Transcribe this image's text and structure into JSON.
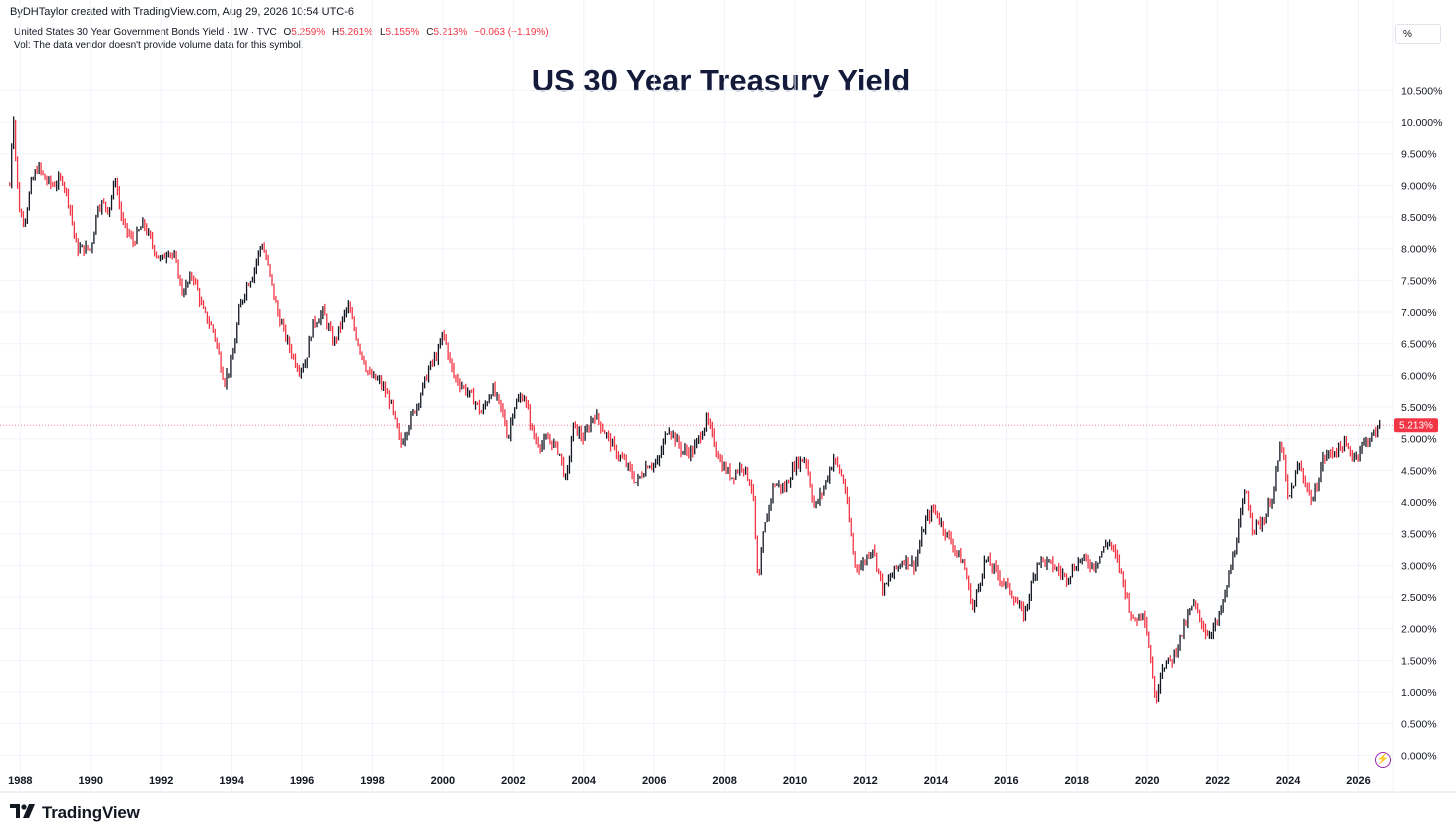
{
  "header": {
    "credit": "ByDHTaylor created with TradingView.com, Aug 29, 2026 10:54 UTC-6",
    "symbol_line": "United States 30 Year Government Bonds Yield · 1W · TVC",
    "open_label": "O",
    "open_value": "5.259%",
    "high_label": "H",
    "high_value": "5.261%",
    "low_label": "L",
    "low_value": "5.155%",
    "close_label": "C",
    "close_value": "5.213%",
    "change": "−0.063 (−1.19%)",
    "volume_note": "Vol: The data vendor doesn't provide volume data for this symbol.",
    "unit_button": "%"
  },
  "footer": {
    "brand": "TradingView"
  },
  "icons": {
    "logo": "tradingview-logo-icon",
    "lightning": "lightning-icon"
  },
  "colors": {
    "up": "#131722",
    "down": "#f23645",
    "price_tag": "#f23645",
    "title": "#131a3a"
  },
  "chart_data": {
    "type": "line",
    "title": "US 30 Year Treasury Yield",
    "xlabel": "",
    "ylabel": "",
    "x_ticks": [
      "1988",
      "1990",
      "1992",
      "1994",
      "1996",
      "1998",
      "2000",
      "2002",
      "2004",
      "2006",
      "2008",
      "2010",
      "2012",
      "2014",
      "2016",
      "2018",
      "2020",
      "2022",
      "2024",
      "2026"
    ],
    "y_ticks": [
      "0.000%",
      "0.500%",
      "1.000%",
      "1.500%",
      "2.000%",
      "2.500%",
      "3.000%",
      "3.500%",
      "4.000%",
      "4.500%",
      "5.000%",
      "5.500%",
      "6.000%",
      "6.500%",
      "7.000%",
      "7.500%",
      "8.000%",
      "8.500%",
      "9.000%",
      "9.500%",
      "10.000%",
      "10.500%"
    ],
    "xlim": [
      1987.65,
      2026.95
    ],
    "ylim": [
      -0.2,
      10.98
    ],
    "grid": true,
    "last_price_label": "5.213%",
    "last_price": 5.213,
    "series": [
      {
        "points": [
          [
            1987.7,
            9.0
          ],
          [
            1987.8,
            10.2
          ],
          [
            1987.9,
            9.1
          ],
          [
            1988.0,
            8.5
          ],
          [
            1988.15,
            8.5
          ],
          [
            1988.3,
            9.0
          ],
          [
            1988.5,
            9.3
          ],
          [
            1988.7,
            9.1
          ],
          [
            1988.9,
            9.0
          ],
          [
            1989.2,
            9.1
          ],
          [
            1989.4,
            8.7
          ],
          [
            1989.6,
            8.0
          ],
          [
            1989.8,
            8.0
          ],
          [
            1990.0,
            8.0
          ],
          [
            1990.2,
            8.7
          ],
          [
            1990.4,
            8.7
          ],
          [
            1990.5,
            8.6
          ],
          [
            1990.7,
            9.1
          ],
          [
            1990.9,
            8.4
          ],
          [
            1991.2,
            8.1
          ],
          [
            1991.5,
            8.4
          ],
          [
            1991.8,
            8.0
          ],
          [
            1992.0,
            7.8
          ],
          [
            1992.2,
            8.0
          ],
          [
            1992.4,
            7.8
          ],
          [
            1992.6,
            7.3
          ],
          [
            1992.9,
            7.6
          ],
          [
            1993.2,
            7.0
          ],
          [
            1993.5,
            6.7
          ],
          [
            1993.8,
            5.9
          ],
          [
            1994.0,
            6.2
          ],
          [
            1994.2,
            7.0
          ],
          [
            1994.4,
            7.4
          ],
          [
            1994.6,
            7.6
          ],
          [
            1994.85,
            8.1
          ],
          [
            1995.0,
            7.8
          ],
          [
            1995.3,
            7.0
          ],
          [
            1995.6,
            6.5
          ],
          [
            1995.9,
            6.1
          ],
          [
            1996.1,
            6.2
          ],
          [
            1996.3,
            6.8
          ],
          [
            1996.6,
            7.0
          ],
          [
            1996.9,
            6.5
          ],
          [
            1997.1,
            6.8
          ],
          [
            1997.3,
            7.1
          ],
          [
            1997.6,
            6.5
          ],
          [
            1997.9,
            6.0
          ],
          [
            1998.2,
            5.9
          ],
          [
            1998.5,
            5.6
          ],
          [
            1998.8,
            4.9
          ],
          [
            1999.0,
            5.2
          ],
          [
            1999.3,
            5.6
          ],
          [
            1999.6,
            6.1
          ],
          [
            1999.9,
            6.4
          ],
          [
            2000.0,
            6.7
          ],
          [
            2000.3,
            6.0
          ],
          [
            2000.6,
            5.8
          ],
          [
            2000.9,
            5.6
          ],
          [
            2001.1,
            5.4
          ],
          [
            2001.4,
            5.8
          ],
          [
            2001.7,
            5.4
          ],
          [
            2001.85,
            5.0
          ],
          [
            2002.0,
            5.5
          ],
          [
            2002.3,
            5.7
          ],
          [
            2002.6,
            5.0
          ],
          [
            2002.8,
            4.9
          ],
          [
            2003.0,
            5.0
          ],
          [
            2003.3,
            4.8
          ],
          [
            2003.5,
            4.3
          ],
          [
            2003.7,
            5.2
          ],
          [
            2004.0,
            5.0
          ],
          [
            2004.3,
            5.4
          ],
          [
            2004.6,
            5.1
          ],
          [
            2004.9,
            4.8
          ],
          [
            2005.2,
            4.6
          ],
          [
            2005.5,
            4.3
          ],
          [
            2005.8,
            4.6
          ],
          [
            2006.1,
            4.6
          ],
          [
            2006.4,
            5.2
          ],
          [
            2006.8,
            4.8
          ],
          [
            2007.1,
            4.8
          ],
          [
            2007.5,
            5.3
          ],
          [
            2007.9,
            4.6
          ],
          [
            2008.2,
            4.4
          ],
          [
            2008.5,
            4.6
          ],
          [
            2008.8,
            4.2
          ],
          [
            2008.95,
            2.6
          ],
          [
            2009.1,
            3.5
          ],
          [
            2009.4,
            4.3
          ],
          [
            2009.7,
            4.2
          ],
          [
            2010.0,
            4.6
          ],
          [
            2010.3,
            4.7
          ],
          [
            2010.55,
            3.9
          ],
          [
            2010.8,
            4.2
          ],
          [
            2011.1,
            4.7
          ],
          [
            2011.4,
            4.3
          ],
          [
            2011.7,
            3.0
          ],
          [
            2011.9,
            3.0
          ],
          [
            2012.2,
            3.3
          ],
          [
            2012.5,
            2.6
          ],
          [
            2012.8,
            2.9
          ],
          [
            2013.1,
            3.1
          ],
          [
            2013.4,
            3.0
          ],
          [
            2013.7,
            3.7
          ],
          [
            2013.95,
            3.9
          ],
          [
            2014.2,
            3.6
          ],
          [
            2014.5,
            3.3
          ],
          [
            2014.8,
            3.0
          ],
          [
            2015.05,
            2.3
          ],
          [
            2015.4,
            3.1
          ],
          [
            2015.7,
            2.9
          ],
          [
            2016.1,
            2.6
          ],
          [
            2016.5,
            2.2
          ],
          [
            2016.9,
            3.1
          ],
          [
            2017.3,
            3.0
          ],
          [
            2017.7,
            2.8
          ],
          [
            2018.1,
            3.1
          ],
          [
            2018.5,
            3.0
          ],
          [
            2018.9,
            3.4
          ],
          [
            2019.2,
            3.0
          ],
          [
            2019.6,
            2.1
          ],
          [
            2019.9,
            2.3
          ],
          [
            2020.15,
            1.3
          ],
          [
            2020.22,
            0.8
          ],
          [
            2020.4,
            1.4
          ],
          [
            2020.7,
            1.5
          ],
          [
            2021.1,
            2.1
          ],
          [
            2021.3,
            2.4
          ],
          [
            2021.7,
            1.9
          ],
          [
            2022.0,
            2.1
          ],
          [
            2022.2,
            2.5
          ],
          [
            2022.5,
            3.3
          ],
          [
            2022.8,
            4.2
          ],
          [
            2023.0,
            3.6
          ],
          [
            2023.3,
            3.7
          ],
          [
            2023.6,
            4.2
          ],
          [
            2023.8,
            5.0
          ],
          [
            2024.0,
            4.0
          ],
          [
            2024.3,
            4.6
          ],
          [
            2024.7,
            4.0
          ],
          [
            2025.0,
            4.7
          ],
          [
            2025.3,
            4.8
          ],
          [
            2025.6,
            4.9
          ],
          [
            2025.9,
            4.7
          ],
          [
            2026.1,
            4.9
          ],
          [
            2026.3,
            5.0
          ],
          [
            2026.5,
            5.1
          ],
          [
            2026.6,
            5.213
          ]
        ]
      }
    ]
  }
}
